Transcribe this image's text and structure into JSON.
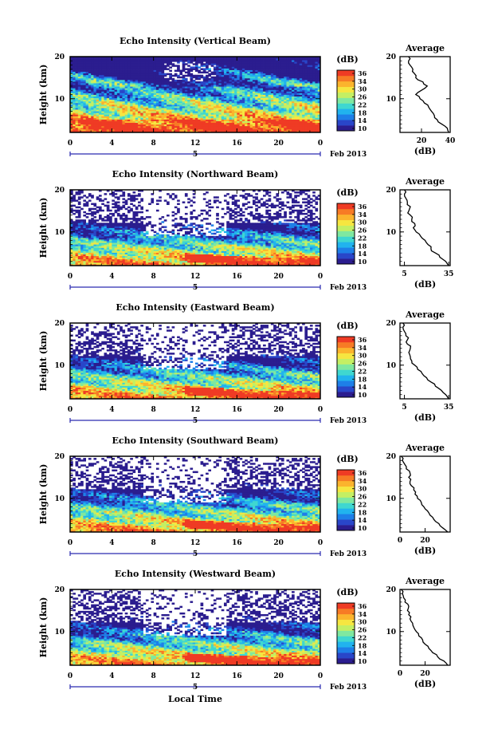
{
  "figure": {
    "xlabel": "Local Time",
    "date_label": "5",
    "month_label": "Feb 2013",
    "ylabel": "Height (km)",
    "colorbar_unit": "(dB)",
    "average_title": "Average",
    "average_xlabel": "(dB)"
  },
  "colorbar": {
    "ticks": [
      "36",
      "34",
      "30",
      "26",
      "22",
      "18",
      "14",
      "10"
    ],
    "range": [
      10,
      38
    ],
    "colors": [
      "#2b1d8f",
      "#2946c9",
      "#1e7fe8",
      "#21b3ee",
      "#3fd7d0",
      "#7fe8a0",
      "#c4ef63",
      "#f6e640",
      "#fbb42d",
      "#f77b25",
      "#ef3b24"
    ]
  },
  "chart_data": [
    {
      "type": "heatmap",
      "title": "Echo Intensity (Vertical Beam)",
      "x_ticks": [
        "0",
        "4",
        "8",
        "12",
        "16",
        "20",
        "0"
      ],
      "xlim": [
        0,
        24
      ],
      "y_ticks": [
        "20",
        "10"
      ],
      "ylim": [
        2,
        20
      ],
      "profile": {
        "title": "Average",
        "x_ticks": [
          "20",
          "40"
        ],
        "xlim": [
          5,
          40
        ],
        "heights": [
          2,
          3,
          4,
          5,
          6,
          7,
          8,
          9,
          10,
          11,
          12,
          13,
          14,
          15,
          16,
          17,
          18,
          19,
          20
        ],
        "values": [
          39,
          38,
          34,
          31,
          29,
          27,
          25,
          22,
          19,
          16,
          20,
          24,
          21,
          16,
          15,
          14,
          12,
          11,
          11
        ]
      }
    },
    {
      "type": "heatmap",
      "title": "Echo Intensity (Northward Beam)",
      "x_ticks": [
        "0",
        "4",
        "8",
        "12",
        "16",
        "20",
        "0"
      ],
      "xlim": [
        0,
        24
      ],
      "y_ticks": [
        "20",
        "10"
      ],
      "ylim": [
        2,
        20
      ],
      "profile": {
        "title": "Average",
        "x_ticks": [
          "5",
          "35"
        ],
        "xlim": [
          2,
          36
        ],
        "heights": [
          2,
          3,
          4,
          5,
          6,
          7,
          8,
          9,
          10,
          11,
          12,
          13,
          14,
          15,
          16,
          17,
          18,
          19,
          20
        ],
        "values": [
          35,
          33,
          29,
          26,
          23,
          21,
          19,
          16,
          13,
          11,
          12,
          10,
          9,
          8,
          9,
          7,
          6,
          5,
          5
        ]
      }
    },
    {
      "type": "heatmap",
      "title": "Echo Intensity (Eastward Beam)",
      "x_ticks": [
        "0",
        "4",
        "8",
        "12",
        "16",
        "20",
        "0"
      ],
      "xlim": [
        0,
        24
      ],
      "y_ticks": [
        "20",
        "10"
      ],
      "ylim": [
        2,
        20
      ],
      "profile": {
        "title": "Average",
        "x_ticks": [
          "5",
          "35"
        ],
        "xlim": [
          2,
          36
        ],
        "heights": [
          2,
          3,
          4,
          5,
          6,
          7,
          8,
          9,
          10,
          11,
          12,
          13,
          14,
          15,
          16,
          17,
          18,
          19,
          20
        ],
        "values": [
          35,
          33,
          30,
          26,
          23,
          20,
          17,
          14,
          12,
          10,
          9,
          8,
          9,
          7,
          7,
          6,
          5,
          4,
          4
        ]
      }
    },
    {
      "type": "heatmap",
      "title": "Echo Intensity (Southward Beam)",
      "x_ticks": [
        "0",
        "4",
        "8",
        "12",
        "16",
        "20",
        "0"
      ],
      "xlim": [
        0,
        24
      ],
      "y_ticks": [
        "20",
        "10"
      ],
      "ylim": [
        2,
        20
      ],
      "profile": {
        "title": "Average",
        "x_ticks": [
          "0",
          "20"
        ],
        "xlim": [
          0,
          40
        ],
        "heights": [
          2,
          3,
          4,
          5,
          6,
          7,
          8,
          9,
          10,
          11,
          12,
          13,
          14,
          15,
          16,
          17,
          18,
          19,
          20
        ],
        "values": [
          38,
          34,
          31,
          27,
          24,
          22,
          19,
          17,
          14,
          12,
          11,
          9,
          8,
          7,
          8,
          5,
          4,
          2,
          1
        ]
      }
    },
    {
      "type": "heatmap",
      "title": "Echo Intensity (Westward Beam)",
      "x_ticks": [
        "0",
        "4",
        "8",
        "12",
        "16",
        "20",
        "0"
      ],
      "xlim": [
        0,
        24
      ],
      "y_ticks": [
        "20",
        "10"
      ],
      "ylim": [
        2,
        20
      ],
      "profile": {
        "title": "Average",
        "x_ticks": [
          "0",
          "20"
        ],
        "xlim": [
          0,
          40
        ],
        "heights": [
          2,
          3,
          4,
          5,
          6,
          7,
          8,
          9,
          10,
          11,
          12,
          13,
          14,
          15,
          16,
          17,
          18,
          19,
          20
        ],
        "values": [
          38,
          35,
          30,
          26,
          23,
          20,
          18,
          15,
          13,
          11,
          10,
          8,
          7,
          6,
          7,
          4,
          3,
          2,
          1
        ]
      }
    }
  ]
}
